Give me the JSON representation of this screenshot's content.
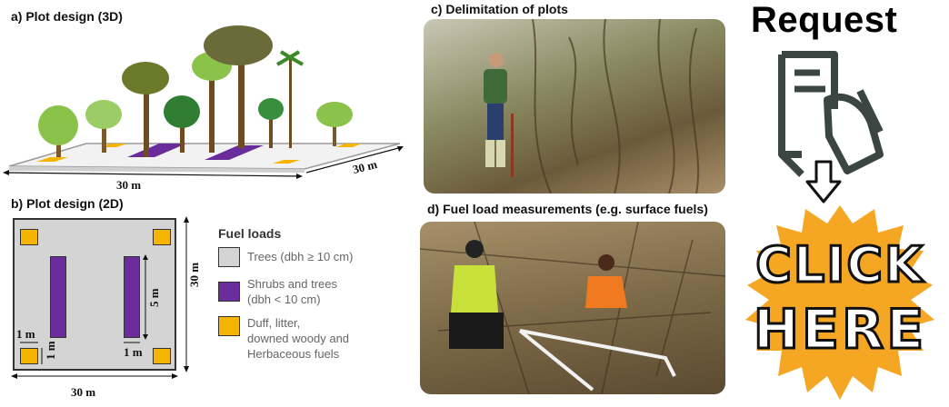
{
  "panels": {
    "a_title": "a) Plot design (3D)",
    "b_title": "b) Plot design (2D)",
    "c_title": "c) Delimitation of plots",
    "d_title": "d) Fuel load measurements (e.g. surface fuels)"
  },
  "dimensions": {
    "width_3d": "30 m",
    "depth_3d": "30 m",
    "width_2d": "30 m",
    "height_2d": "30 m",
    "strip_length": "5 m",
    "strip_width": "1 m",
    "square_width": "1 m",
    "square_height": "1 m"
  },
  "legend": {
    "title": "Fuel loads",
    "items": [
      {
        "line1": "Trees (dbh ≥ 10 cm)",
        "line2": "",
        "line3": "",
        "line4": "",
        "color": "#d4d4d4"
      },
      {
        "line1": "Shrubs and trees",
        "line2": "(dbh < 10 cm)",
        "line3": "",
        "line4": "",
        "color": "#6a2c9a"
      },
      {
        "line1": "Duff, litter,",
        "line2": "downed woody and",
        "line3": "Herbaceous fuels",
        "line4": "",
        "color": "#f4b400"
      }
    ]
  },
  "ad": {
    "request": "Request",
    "click_line1": "CLICK",
    "click_line2": "HERE",
    "burst_color": "#f5a623"
  }
}
